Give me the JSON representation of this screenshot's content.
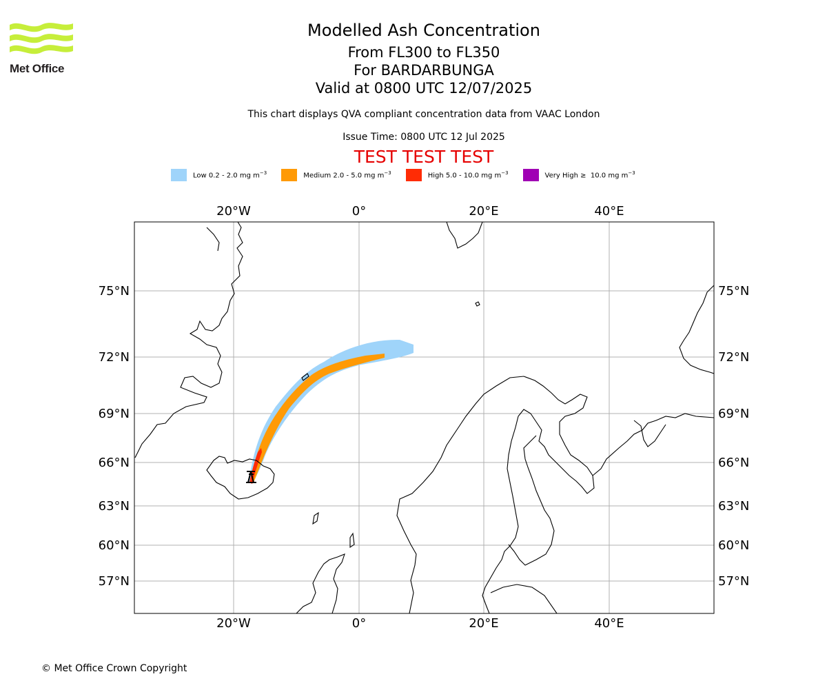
{
  "logo": {
    "name": "Met Office"
  },
  "title": {
    "main": "Modelled Ash Concentration",
    "levels": "From FL300 to FL350",
    "volcano": "For BARDARBUNGA",
    "valid": "Valid at 0800 UTC 12/07/2025"
  },
  "subtitle": "This chart displays QVA compliant concentration data from VAAC London",
  "issue_time": "Issue Time: 0800 UTC 12 Jul 2025",
  "test_banner": "TEST TEST TEST",
  "legend": [
    {
      "name": "Low",
      "range": "0.2 - 2.0",
      "unit": "mg m",
      "exp": "−3",
      "color": "#9fd4fa"
    },
    {
      "name": "Medium",
      "range": "2.0 - 5.0",
      "unit": "mg m",
      "exp": "−3",
      "color": "#ff9a05"
    },
    {
      "name": "High",
      "range": "5.0 - 10.0",
      "unit": "mg m",
      "exp": "−3",
      "color": "#ff2c05"
    },
    {
      "name": "Very High",
      "range": "≥  10.0",
      "unit": "mg m",
      "exp": "−3",
      "color": "#a000b4"
    }
  ],
  "map": {
    "lon_ticks": [
      "20°W",
      "0°",
      "20°E",
      "40°E"
    ],
    "lat_ticks": [
      "75°N",
      "72°N",
      "69°N",
      "66°N",
      "63°N",
      "60°N",
      "57°N"
    ],
    "volcano_marker": "volcano-icon",
    "grid": true,
    "colors": {
      "land_outline": "#000000",
      "grid": "#b0b0b0"
    }
  },
  "copyright": "© Met Office Crown Copyright"
}
